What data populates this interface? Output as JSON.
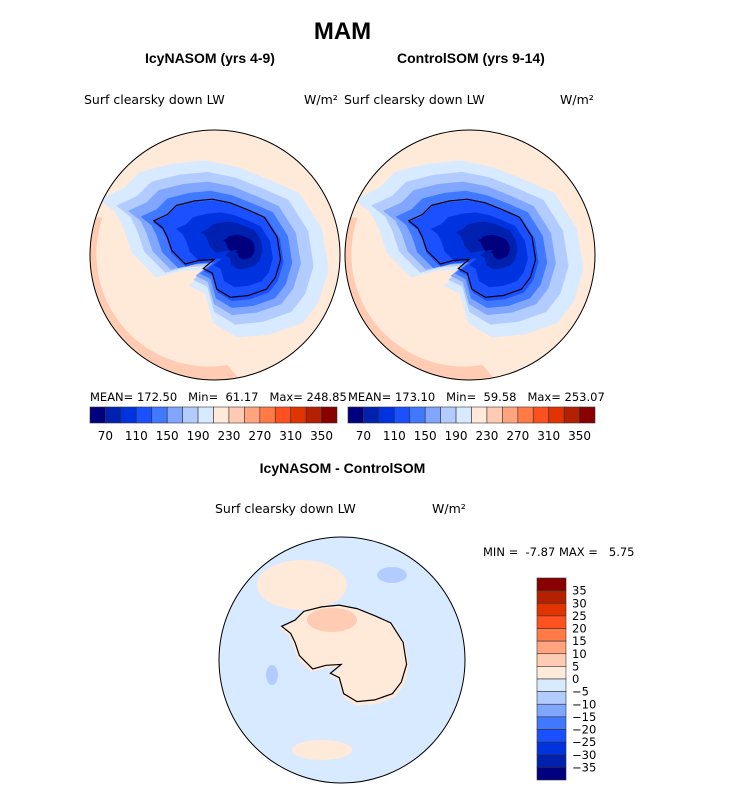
{
  "title": "MAM",
  "colors": [
    "#00007f",
    "#0020b0",
    "#0033e0",
    "#1a50ff",
    "#4078ff",
    "#80a6ff",
    "#b3ccff",
    "#d7eaff",
    "#ffe9d9",
    "#ffcbb2",
    "#ffa47f",
    "#ff7a45",
    "#ff5020",
    "#e23400",
    "#b52000",
    "#880000"
  ],
  "panels": [
    {
      "title": "IcyNASOM (yrs 4-9)",
      "variable": "Surf clearsky down LW",
      "units": "W/m²",
      "mean_label": "MEAN=",
      "mean": "172.50",
      "min_label": "Min=",
      "min": "61.17",
      "max_label": "Max=",
      "max": "248.85"
    },
    {
      "title": "ControlSOM (yrs 9-14)",
      "variable": "Surf clearsky down LW",
      "units": "W/m²",
      "mean_label": "MEAN=",
      "mean": "173.10",
      "min_label": "Min=",
      "min": "59.58",
      "max_label": "Max=",
      "max": "253.07"
    }
  ],
  "colorbar_ticks": [
    "70",
    "110",
    "150",
    "190",
    "230",
    "270",
    "310",
    "350"
  ],
  "diff": {
    "title": "IcyNASOM - ControlSOM",
    "variable": "Surf clearsky down LW",
    "units": "W/m²",
    "min_label": "MIN =",
    "min": "-7.87",
    "max_label": "MAX =",
    "max": "5.75",
    "ticks": [
      "35",
      "30",
      "25",
      "20",
      "15",
      "10",
      "5",
      "0",
      "−5",
      "−10",
      "−15",
      "−20",
      "−25",
      "−30",
      "−35"
    ]
  },
  "chart_data": [
    {
      "type": "heatmap",
      "title": "IcyNASOM (yrs 4-9)",
      "subtitle": "Surf clearsky down LW",
      "units": "W/m2",
      "mean": 172.5,
      "min": 61.17,
      "max": 248.85,
      "levels": [
        70,
        110,
        150,
        190,
        230,
        270,
        310,
        350
      ]
    },
    {
      "type": "heatmap",
      "title": "ControlSOM (yrs 9-14)",
      "subtitle": "Surf clearsky down LW",
      "units": "W/m2",
      "mean": 173.1,
      "min": 59.58,
      "max": 253.07,
      "levels": [
        70,
        110,
        150,
        190,
        230,
        270,
        310,
        350
      ]
    },
    {
      "type": "heatmap",
      "title": "IcyNASOM - ControlSOM",
      "subtitle": "Surf clearsky down LW",
      "units": "W/m2",
      "min": -7.87,
      "max": 5.75,
      "levels": [
        -35,
        -30,
        -25,
        -20,
        -15,
        -10,
        -5,
        0,
        5,
        10,
        15,
        20,
        25,
        30,
        35
      ]
    }
  ]
}
